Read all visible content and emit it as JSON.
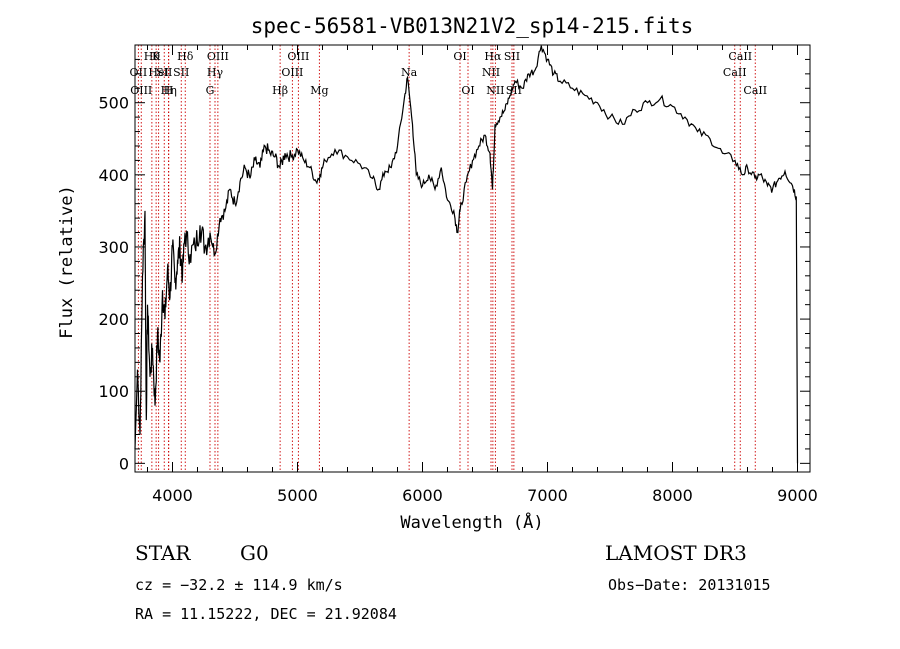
{
  "chart_data": {
    "type": "line",
    "title": "spec-56581-VB013N21V2_sp14-215.fits",
    "xlabel": "Wavelength (Å)",
    "ylabel": "Flux (relative)",
    "xlim": [
      3700,
      9100
    ],
    "ylim": [
      -12,
      580
    ],
    "xticks": [
      4000,
      5000,
      6000,
      7000,
      8000,
      9000
    ],
    "yticks": [
      0,
      100,
      200,
      300,
      400,
      500
    ],
    "grid": false,
    "series": [
      {
        "points": [
          [
            3700,
            20
          ],
          [
            3720,
            130
          ],
          [
            3740,
            40
          ],
          [
            3760,
            260
          ],
          [
            3780,
            350
          ],
          [
            3790,
            60
          ],
          [
            3800,
            220
          ],
          [
            3820,
            120
          ],
          [
            3840,
            160
          ],
          [
            3860,
            80
          ],
          [
            3880,
            180
          ],
          [
            3900,
            140
          ],
          [
            3920,
            240
          ],
          [
            3940,
            200
          ],
          [
            3960,
            270
          ],
          [
            3980,
            230
          ],
          [
            4000,
            300
          ],
          [
            4020,
            250
          ],
          [
            4040,
            280
          ],
          [
            4060,
            300
          ],
          [
            4080,
            260
          ],
          [
            4100,
            320
          ],
          [
            4140,
            290
          ],
          [
            4180,
            300
          ],
          [
            4220,
            330
          ],
          [
            4260,
            300
          ],
          [
            4300,
            320
          ],
          [
            4340,
            290
          ],
          [
            4380,
            340
          ],
          [
            4420,
            350
          ],
          [
            4460,
            380
          ],
          [
            4500,
            360
          ],
          [
            4540,
            390
          ],
          [
            4580,
            410
          ],
          [
            4620,
            395
          ],
          [
            4660,
            420
          ],
          [
            4700,
            410
          ],
          [
            4740,
            440
          ],
          [
            4780,
            430
          ],
          [
            4820,
            425
          ],
          [
            4860,
            410
          ],
          [
            4900,
            430
          ],
          [
            4950,
            425
          ],
          [
            5000,
            435
          ],
          [
            5050,
            420
          ],
          [
            5100,
            410
          ],
          [
            5150,
            390
          ],
          [
            5180,
            400
          ],
          [
            5220,
            420
          ],
          [
            5300,
            435
          ],
          [
            5400,
            425
          ],
          [
            5500,
            415
          ],
          [
            5600,
            395
          ],
          [
            5650,
            380
          ],
          [
            5700,
            405
          ],
          [
            5750,
            410
          ],
          [
            5800,
            440
          ],
          [
            5850,
            500
          ],
          [
            5880,
            535
          ],
          [
            5920,
            470
          ],
          [
            5950,
            400
          ],
          [
            6000,
            385
          ],
          [
            6050,
            400
          ],
          [
            6100,
            380
          ],
          [
            6150,
            410
          ],
          [
            6200,
            365
          ],
          [
            6250,
            350
          ],
          [
            6280,
            320
          ],
          [
            6300,
            350
          ],
          [
            6350,
            390
          ],
          [
            6400,
            420
          ],
          [
            6450,
            440
          ],
          [
            6500,
            455
          ],
          [
            6540,
            430
          ],
          [
            6560,
            380
          ],
          [
            6580,
            470
          ],
          [
            6620,
            480
          ],
          [
            6660,
            490
          ],
          [
            6700,
            510
          ],
          [
            6740,
            530
          ],
          [
            6800,
            520
          ],
          [
            6850,
            540
          ],
          [
            6900,
            545
          ],
          [
            6950,
            580
          ],
          [
            7000,
            560
          ],
          [
            7050,
            540
          ],
          [
            7100,
            530
          ],
          [
            7200,
            520
          ],
          [
            7300,
            510
          ],
          [
            7400,
            500
          ],
          [
            7500,
            480
          ],
          [
            7600,
            470
          ],
          [
            7700,
            490
          ],
          [
            7800,
            500
          ],
          [
            7900,
            505
          ],
          [
            8000,
            495
          ],
          [
            8100,
            480
          ],
          [
            8200,
            460
          ],
          [
            8300,
            450
          ],
          [
            8400,
            430
          ],
          [
            8500,
            420
          ],
          [
            8560,
            400
          ],
          [
            8600,
            410
          ],
          [
            8660,
            395
          ],
          [
            8700,
            400
          ],
          [
            8760,
            385
          ],
          [
            8800,
            380
          ],
          [
            8850,
            395
          ],
          [
            8900,
            405
          ],
          [
            8960,
            385
          ],
          [
            8990,
            370
          ],
          [
            9000,
            0
          ]
        ]
      }
    ],
    "line_markers": [
      {
        "wavelength": 3835,
        "label": "Hθ",
        "row": 1
      },
      {
        "wavelength": 3869,
        "label": "K",
        "row": 1
      },
      {
        "wavelength": 3889,
        "label": "HeI",
        "row": 2
      },
      {
        "wavelength": 3934,
        "label": "SII",
        "row": 2
      },
      {
        "wavelength": 3727,
        "label": "OII",
        "row": 2
      },
      {
        "wavelength": 3750,
        "label": "OIII",
        "row": 3
      },
      {
        "wavelength": 3970,
        "label": "Hη",
        "row": 3
      },
      {
        "wavelength": 3968,
        "label": "H",
        "row": 3
      },
      {
        "wavelength": 4102,
        "label": "Hδ",
        "row": 1
      },
      {
        "wavelength": 4070,
        "label": "SII",
        "row": 2
      },
      {
        "wavelength": 4300,
        "label": "G",
        "row": 3
      },
      {
        "wavelength": 4340,
        "label": "Hγ",
        "row": 2
      },
      {
        "wavelength": 4363,
        "label": "OIII",
        "row": 1
      },
      {
        "wavelength": 4861,
        "label": "Hβ",
        "row": 3
      },
      {
        "wavelength": 4959,
        "label": "OIII",
        "row": 2
      },
      {
        "wavelength": 5007,
        "label": "OIII",
        "row": 1
      },
      {
        "wavelength": 5175,
        "label": "Mg",
        "row": 3
      },
      {
        "wavelength": 5893,
        "label": "Na",
        "row": 2
      },
      {
        "wavelength": 6300,
        "label": "OI",
        "row": 1
      },
      {
        "wavelength": 6364,
        "label": "OI",
        "row": 3
      },
      {
        "wavelength": 6548,
        "label": "NII",
        "row": 2
      },
      {
        "wavelength": 6563,
        "label": "Hα",
        "row": 1
      },
      {
        "wavelength": 6583,
        "label": "NII",
        "row": 3
      },
      {
        "wavelength": 6716,
        "label": "SII",
        "row": 1
      },
      {
        "wavelength": 6731,
        "label": "SII",
        "row": 3
      },
      {
        "wavelength": 8498,
        "label": "CaII",
        "row": 2
      },
      {
        "wavelength": 8542,
        "label": "CaII",
        "row": 1
      },
      {
        "wavelength": 8662,
        "label": "CaII",
        "row": 3
      }
    ],
    "line_color": "#000000",
    "marker_color": "#cc0000"
  },
  "info": {
    "class": "STAR",
    "subclass": "G0",
    "survey": "LAMOST DR3",
    "cz": "cz = −32.2 ± 114.9 km/s",
    "obs_date": "Obs−Date: 20131015",
    "coords": "RA =  11.15222, DEC =  21.92084"
  }
}
